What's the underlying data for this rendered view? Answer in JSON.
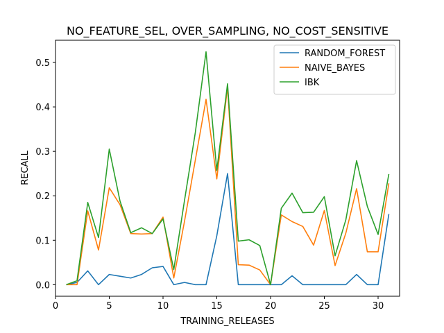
{
  "chart_data": {
    "type": "line",
    "title": "NO_FEATURE_SEL, OVER_SAMPLING, NO_COST_SENSITIVE",
    "xlabel": "TRAINING_RELEASES",
    "ylabel": "RECALL",
    "xlim": [
      0,
      32
    ],
    "ylim": [
      -0.026,
      0.55
    ],
    "xticks": [
      0,
      5,
      10,
      15,
      20,
      25,
      30
    ],
    "yticks": [
      0.0,
      0.1,
      0.2,
      0.3,
      0.4,
      0.5
    ],
    "ytick_labels": [
      "0.0",
      "0.1",
      "0.2",
      "0.3",
      "0.4",
      "0.5"
    ],
    "grid": false,
    "legend_position": "top-right",
    "x": [
      1,
      2,
      3,
      4,
      5,
      6,
      7,
      8,
      9,
      10,
      11,
      12,
      13,
      14,
      15,
      16,
      17,
      18,
      19,
      20,
      21,
      22,
      23,
      24,
      25,
      26,
      27,
      28,
      29,
      30,
      31
    ],
    "series": [
      {
        "name": "RANDOM_FOREST",
        "color": "#1f77b4",
        "values": [
          0.0,
          0.005,
          0.031,
          0.0,
          0.023,
          0.019,
          0.015,
          0.023,
          0.038,
          0.041,
          0.0,
          0.005,
          0.0,
          0.0,
          0.11,
          0.25,
          0.0,
          0.0,
          0.0,
          0.0,
          0.0,
          0.02,
          0.0,
          0.0,
          0.0,
          0.0,
          0.0,
          0.023,
          0.0,
          0.0,
          0.159
        ]
      },
      {
        "name": "NAIVE_BAYES",
        "color": "#ff7f0e",
        "values": [
          0.0,
          0.0,
          0.166,
          0.078,
          0.218,
          0.18,
          0.115,
          0.114,
          0.115,
          0.152,
          0.015,
          0.143,
          0.28,
          0.417,
          0.238,
          0.445,
          0.045,
          0.044,
          0.033,
          0.0,
          0.157,
          0.142,
          0.131,
          0.089,
          0.167,
          0.043,
          0.116,
          0.216,
          0.074,
          0.074,
          0.228
        ]
      },
      {
        "name": "IBK",
        "color": "#2ca02c",
        "values": [
          0.0,
          0.009,
          0.185,
          0.106,
          0.305,
          0.188,
          0.117,
          0.128,
          0.115,
          0.148,
          0.034,
          0.19,
          0.342,
          0.524,
          0.257,
          0.452,
          0.098,
          0.101,
          0.088,
          0.0,
          0.172,
          0.206,
          0.162,
          0.163,
          0.198,
          0.065,
          0.146,
          0.279,
          0.176,
          0.113,
          0.249
        ]
      }
    ]
  }
}
